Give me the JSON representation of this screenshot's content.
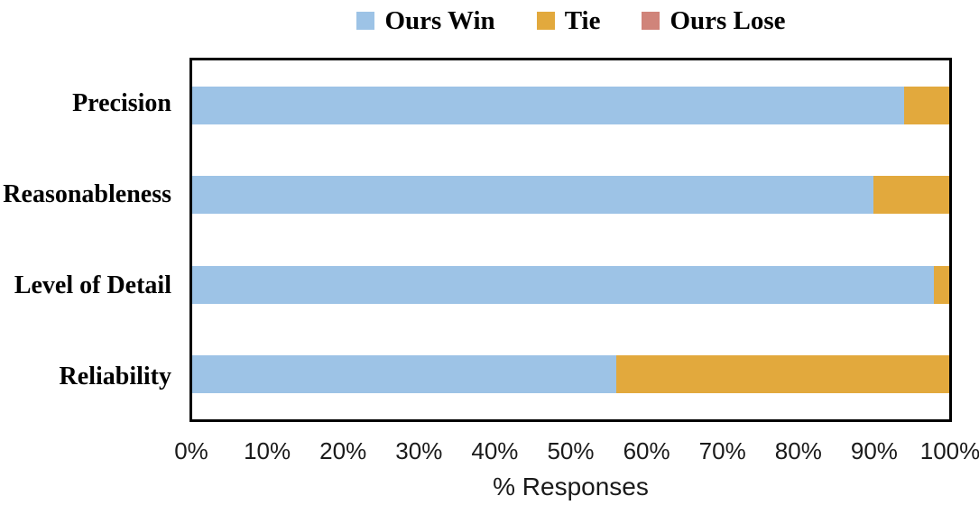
{
  "chart_data": {
    "type": "bar",
    "orientation": "horizontal",
    "stacked": true,
    "title": "",
    "xlabel": "% Responses",
    "ylabel": "",
    "categories": [
      "Precision",
      "Reasonableness",
      "Level of Detail",
      "Reliability"
    ],
    "series": [
      {
        "name": "Ours Win",
        "color": "#9DC3E6",
        "values": [
          94,
          90,
          98,
          56
        ]
      },
      {
        "name": "Tie",
        "color": "#E2A93D",
        "values": [
          6,
          10,
          2,
          44
        ]
      },
      {
        "name": "Ours Lose",
        "color": "#D0847A",
        "values": [
          0,
          0,
          0,
          0
        ]
      }
    ],
    "xlim": [
      0,
      100
    ],
    "x_ticks": [
      "0%",
      "10%",
      "20%",
      "30%",
      "40%",
      "50%",
      "60%",
      "70%",
      "80%",
      "90%",
      "100%"
    ],
    "grid": false,
    "legend_position": "top",
    "plot_border_color": "#000000",
    "background_color": "#FFFFFF"
  }
}
